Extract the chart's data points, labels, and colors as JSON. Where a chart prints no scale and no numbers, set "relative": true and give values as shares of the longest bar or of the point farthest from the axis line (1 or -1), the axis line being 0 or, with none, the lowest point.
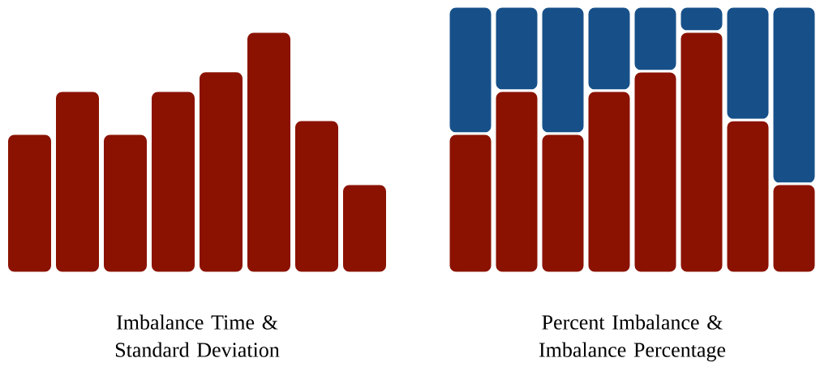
{
  "chart_data": [
    {
      "type": "bar",
      "relative": true,
      "xlabel": "Imbalance Time & Standard Deviation",
      "categories": [
        null,
        null,
        null,
        null,
        null,
        null,
        null,
        null
      ],
      "color": "#8b1200",
      "values": [
        0.577,
        0.755,
        0.577,
        0.755,
        0.836,
        1.0,
        0.634,
        0.369
      ]
    },
    {
      "type": "bar",
      "relative": true,
      "stacked": true,
      "xlabel": "Percent Imbalance & Imbalance Percentage",
      "categories": [
        null,
        null,
        null,
        null,
        null,
        null,
        null,
        null
      ],
      "series": [
        {
          "color": "#8b1200",
          "values": [
            0.523,
            0.684,
            0.523,
            0.684,
            0.757,
            0.906,
            0.574,
            0.334
          ]
        },
        {
          "color": "#175089",
          "values": [
            0.477,
            0.316,
            0.477,
            0.316,
            0.243,
            0.094,
            0.426,
            0.666
          ]
        }
      ]
    }
  ]
}
